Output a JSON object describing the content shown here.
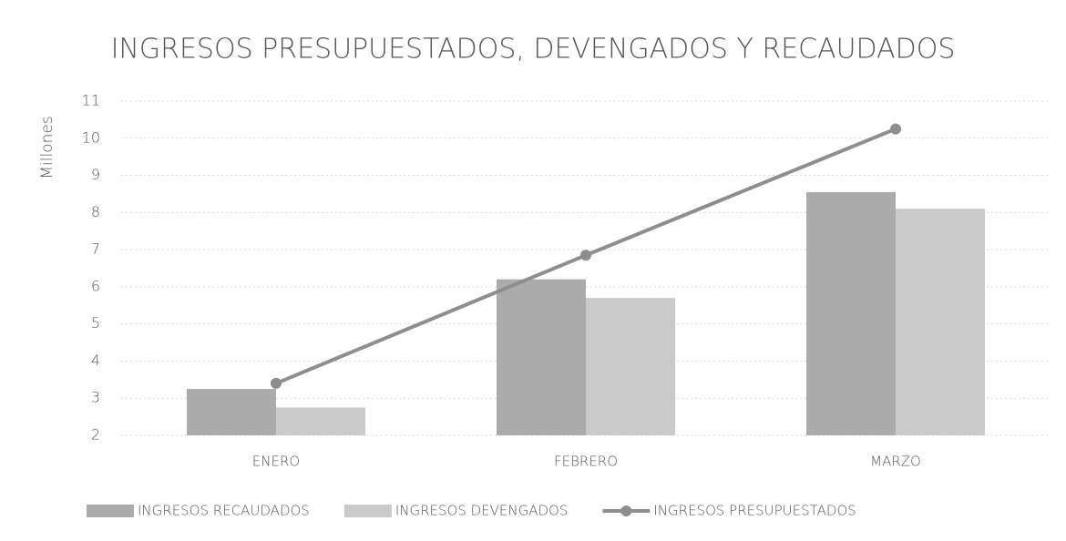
{
  "chart_data": {
    "type": "bar",
    "title": "INGRESOS PRESUPUESTADOS, DEVENGADOS Y RECAUDADOS",
    "y_label": "Millones",
    "categories": [
      "ENERO",
      "FEBRERO",
      "MARZO"
    ],
    "series": [
      {
        "name": "INGRESOS RECAUDADOS",
        "color": "#ababab",
        "type": "bar",
        "values": [
          3.25,
          6.2,
          8.55
        ]
      },
      {
        "name": "INGRESOS DEVENGADOS",
        "color": "#cacaca",
        "type": "bar",
        "values": [
          2.75,
          5.7,
          8.1
        ]
      },
      {
        "name": "INGRESOS PRESUPUESTADOS",
        "color": "#8e8e8e",
        "type": "line",
        "values": [
          3.4,
          6.85,
          10.25
        ]
      }
    ],
    "ylim": [
      2,
      11
    ],
    "yticks": [
      2,
      3,
      4,
      5,
      6,
      7,
      8,
      9,
      10,
      11
    ],
    "grid": true,
    "legend": "bottom"
  }
}
